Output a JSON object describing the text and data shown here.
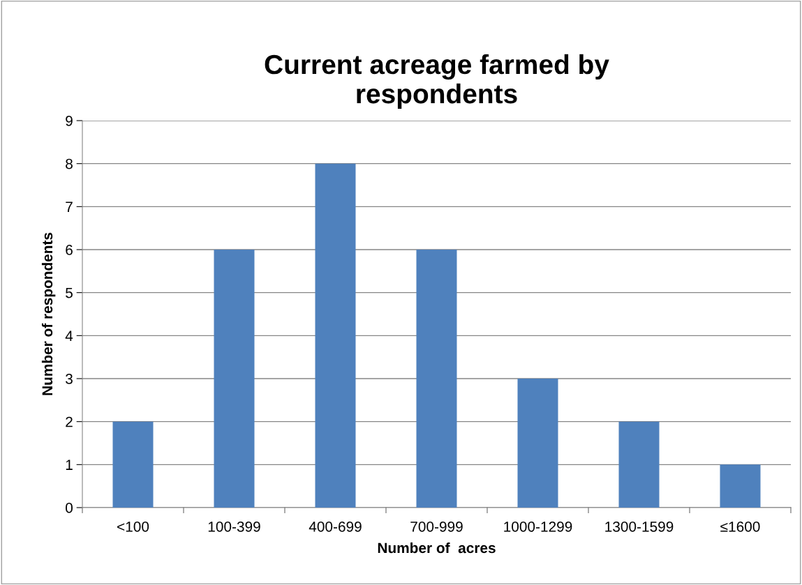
{
  "chart_data": {
    "type": "bar",
    "title": "Current acreage farmed by\nrespondents",
    "xlabel": "Number of  acres",
    "ylabel": "Number of respondents",
    "categories": [
      "<100",
      "100-399",
      "400-699",
      "700-999",
      "1000-1299",
      "1300-1599",
      "≤1600"
    ],
    "values": [
      2,
      6,
      8,
      6,
      3,
      2,
      1
    ],
    "color": "#4f81bd",
    "ylim": [
      0,
      9
    ],
    "yticks": [
      0,
      1,
      2,
      3,
      4,
      5,
      6,
      7,
      8,
      9
    ],
    "grid": "y",
    "legend": false
  }
}
